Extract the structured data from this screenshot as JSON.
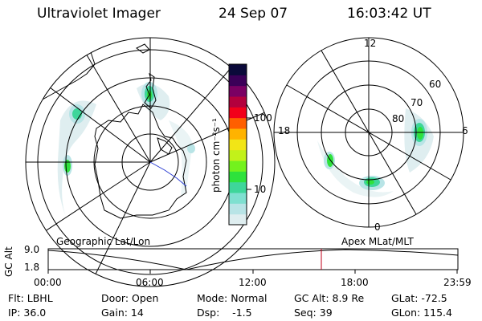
{
  "header": {
    "instrument": "Ultraviolet Imager",
    "date": "24 Sep 07",
    "time": "16:03:42 UT"
  },
  "colorbar": {
    "unit_label": "photon cm⁻²s⁻¹",
    "ticks": [
      {
        "label": "100",
        "value": 100
      },
      {
        "label": "10",
        "value": 10
      }
    ],
    "colors": [
      "#dfeef0",
      "#b8e4e6",
      "#7fe0d0",
      "#3ed69a",
      "#2ee23c",
      "#73f21d",
      "#c2f11a",
      "#f2e516",
      "#ffb300",
      "#ff5f00",
      "#f2001a",
      "#b3003d",
      "#7a0063",
      "#3b0058",
      "#0b0a3a"
    ]
  },
  "right_plot": {
    "mlt_labels": {
      "top": "12",
      "left": "18",
      "right": "6",
      "bottom": "0"
    },
    "lat_labels": [
      "60",
      "70",
      "80"
    ]
  },
  "timeline": {
    "title_left": "Geographic Lat/Lon",
    "title_right": "Apex MLat/MLT",
    "ylabel": "GC Alt",
    "yticks": [
      "9.0",
      "1.8"
    ],
    "xticks": [
      "00:00",
      "06:00",
      "12:00",
      "18:00",
      "23:59"
    ],
    "current_time_marker": "16:03"
  },
  "info": {
    "flt": "Flt: LBHL",
    "ip": "IP: 36.0",
    "door": "Door: Open",
    "gain": "Gain: 14",
    "mode": "Mode: Normal",
    "dsp": "Dsp:    -1.5",
    "gcalt": "GC Alt: 8.9 Re",
    "seq": "Seq: 39",
    "glat": "GLat: -72.5",
    "glon": "GLon: 115.4"
  },
  "colors": {
    "aurora_green": "#2ee23c",
    "aurora_cyan": "#3ed69a",
    "aurora_pale": "#b8e4e6",
    "marker": "#c0001a",
    "track_blue": "#2a3cd2"
  }
}
